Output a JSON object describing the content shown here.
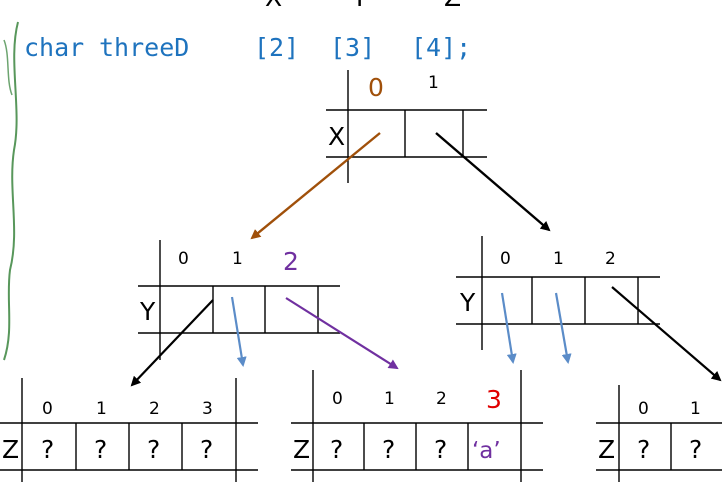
{
  "colors": {
    "code": "#1E73BE",
    "brown": "#A0500A",
    "purple": "#7030A0",
    "blue_arrow": "#5B8CC8",
    "red": "#E00000",
    "scribble": "#2E7D32"
  },
  "top_labels": [
    "X",
    "Y",
    "Z"
  ],
  "code": {
    "type": "char",
    "name": "threeD",
    "dims": [
      "[2]",
      "[3]",
      "[4];"
    ]
  },
  "x_array": {
    "label": "X",
    "indices": [
      "0",
      "1"
    ]
  },
  "y_arrays": [
    {
      "label": "Y",
      "indices": [
        "0",
        "1",
        "2"
      ]
    },
    {
      "label": "Y",
      "indices": [
        "0",
        "1",
        "2"
      ]
    }
  ],
  "z_arrays": [
    {
      "label": "Z",
      "indices": [
        "0",
        "1",
        "2",
        "3"
      ],
      "values": [
        "?",
        "?",
        "?",
        "?"
      ]
    },
    {
      "label": "Z",
      "indices": [
        "0",
        "1",
        "2",
        "3"
      ],
      "values": [
        "?",
        "?",
        "?",
        "‘a’"
      ]
    },
    {
      "label": "Z",
      "indices": [
        "0",
        "1"
      ],
      "values": [
        "?",
        "?"
      ]
    }
  ]
}
